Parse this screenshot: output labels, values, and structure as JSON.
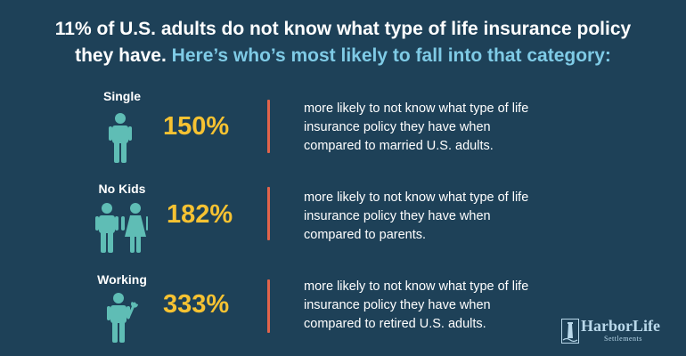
{
  "headline": {
    "line1": "11% of U.S. adults do not know what type of life insurance policy",
    "line2_white": "they have.",
    "line2_accent": "Here’s who’s most likely to fall into that category:"
  },
  "rows": [
    {
      "label": "Single",
      "stat": "150%",
      "desc_lines": [
        "more likely to not know what type of life",
        "insurance policy they have when",
        "compared to married U.S. adults."
      ]
    },
    {
      "label": "No Kids",
      "stat": "182%",
      "desc_lines": [
        "more likely to not know what type of life",
        "insurance policy they have when",
        "compared to parents."
      ]
    },
    {
      "label": "Working",
      "stat": "333%",
      "desc_lines": [
        "more likely to not know what type of life",
        "insurance policy they have when",
        "compared to retired U.S. adults."
      ]
    }
  ],
  "icons": [
    "person-icon",
    "couple-icon",
    "worker-with-wrench-icon",
    "lighthouse-logo-icon"
  ],
  "logo": {
    "name": "HarborLife",
    "sub": "Settlements"
  },
  "colors": {
    "background": "#1e4158",
    "stat": "#f6c232",
    "divider": "#e2644b",
    "figure": "#5fbdb5",
    "accent_text": "#7fcbe6"
  }
}
